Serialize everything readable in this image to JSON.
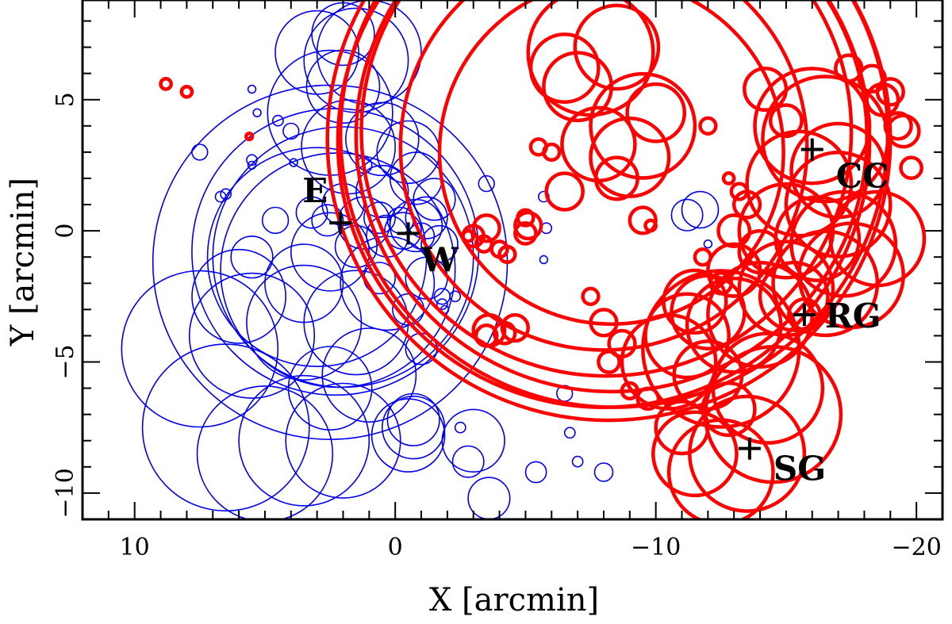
{
  "chart_data": {
    "type": "scatter",
    "xlabel": "X [arcmin]",
    "ylabel": "Y [arcmin]",
    "xlim": [
      12,
      -21
    ],
    "ylim": [
      -11,
      8.8
    ],
    "x_inverted": true,
    "xticks": [
      10,
      0,
      -10,
      -20
    ],
    "xtick_labels": [
      "10",
      "0",
      "−10",
      "−20"
    ],
    "yticks": [
      5,
      0,
      -5,
      -10
    ],
    "ytick_labels": [
      "5",
      "0",
      "−5",
      "−10"
    ],
    "grid": false,
    "legend": "none",
    "colors": {
      "east": "#0000ee",
      "west": "#ff0000",
      "marker": "#000000"
    },
    "markers": [
      {
        "label": "E",
        "x": 2.1,
        "y": 0.3
      },
      {
        "label": "W",
        "x": -0.5,
        "y": -0.1
      },
      {
        "label": "CC",
        "x": -16.0,
        "y": 3.1
      },
      {
        "label": "RG",
        "x": -15.7,
        "y": -3.2
      },
      {
        "label": "SG",
        "x": -13.6,
        "y": -8.3
      }
    ],
    "series": [
      {
        "color": "#0000ee",
        "stroke": 1.6,
        "circles": [
          [
            2.5,
            -1.2,
            6.8
          ],
          [
            2.3,
            -0.8,
            5.5
          ],
          [
            2.0,
            -1.0,
            5.0
          ],
          [
            2.2,
            -1.5,
            4.5
          ],
          [
            3.0,
            -1.0,
            4.2
          ],
          [
            7.5,
            -4.5,
            3.0
          ],
          [
            6.5,
            -7.5,
            3.2
          ],
          [
            5.0,
            -8.5,
            2.6
          ],
          [
            3.5,
            -8.0,
            2.5
          ],
          [
            2.0,
            -8.0,
            2.2
          ],
          [
            5.5,
            -4.0,
            2.4
          ],
          [
            3.5,
            -3.5,
            2.2
          ],
          [
            1.5,
            -3.5,
            2.0
          ],
          [
            1.0,
            -5.5,
            1.8
          ],
          [
            2.5,
            -6.0,
            1.6
          ],
          [
            6.0,
            -2.5,
            1.8
          ],
          [
            0.3,
            -2.0,
            1.8
          ],
          [
            -0.7,
            -7.5,
            1.2
          ],
          [
            -0.5,
            -7.8,
            1.4
          ],
          [
            -0.7,
            -7.2,
            1.0
          ],
          [
            2.5,
            -0.8,
            1.5
          ],
          [
            3.5,
            -2.0,
            1.5
          ],
          [
            5.5,
            -1.0,
            0.8
          ],
          [
            1.5,
            6.5,
            2.0
          ],
          [
            1.0,
            6.8,
            2.0
          ],
          [
            3.0,
            6.8,
            1.6
          ],
          [
            2.0,
            5.5,
            1.4
          ],
          [
            2.0,
            7.5,
            1.2
          ],
          [
            0.5,
            3.5,
            1.4
          ],
          [
            1.8,
            3.2,
            1.8
          ],
          [
            2.5,
            4.5,
            2.4
          ],
          [
            -0.5,
            3.0,
            1.2
          ],
          [
            -0.8,
            2.0,
            1.0
          ],
          [
            0.5,
            1.5,
            1.0
          ],
          [
            -1.5,
            1.2,
            0.8
          ],
          [
            -1.2,
            0.5,
            0.8
          ],
          [
            -0.8,
            0.2,
            1.0
          ],
          [
            -0.3,
            0.0,
            0.7
          ],
          [
            0.3,
            -0.2,
            0.8
          ],
          [
            1.2,
            0.3,
            1.0
          ],
          [
            1.5,
            -0.6,
            0.8
          ],
          [
            0.6,
            0.5,
            0.6
          ],
          [
            -0.2,
            0.4,
            0.5
          ],
          [
            -1.0,
            -0.2,
            0.5
          ],
          [
            -1.7,
            -0.5,
            0.7
          ],
          [
            2.0,
            1.0,
            0.8
          ],
          [
            2.6,
            0.4,
            0.6
          ],
          [
            3.2,
            0.7,
            0.6
          ],
          [
            4.6,
            0.4,
            0.5
          ],
          [
            -1.2,
            -1.8,
            0.8
          ],
          [
            0.6,
            -1.8,
            0.6
          ],
          [
            -0.5,
            -3.0,
            0.6
          ],
          [
            -1.0,
            -4.5,
            0.6
          ],
          [
            -1.8,
            -2.5,
            0.3
          ],
          [
            -1.8,
            -2.8,
            0.2
          ],
          [
            -2.5,
            -7.5,
            0.2
          ],
          [
            -3.0,
            -8.0,
            1.2
          ],
          [
            -2.8,
            -8.8,
            0.6
          ],
          [
            -3.6,
            -10.2,
            0.8
          ],
          [
            -3.5,
            1.8,
            0.3
          ],
          [
            -5.7,
            1.3,
            0.2
          ],
          [
            -5.8,
            0.1,
            0.2
          ],
          [
            -5.7,
            -1.1,
            0.15
          ],
          [
            -6.5,
            -6.2,
            0.3
          ],
          [
            -6.7,
            -7.7,
            0.2
          ],
          [
            -7.0,
            -8.8,
            0.2
          ],
          [
            -5.4,
            -9.2,
            0.4
          ],
          [
            -8.0,
            -9.2,
            0.35
          ],
          [
            -11.7,
            0.8,
            0.7
          ],
          [
            -11.2,
            0.6,
            0.6
          ],
          [
            -12.0,
            -0.5,
            0.15
          ],
          [
            7.5,
            3.0,
            0.3
          ],
          [
            6.5,
            1.4,
            0.2
          ],
          [
            6.7,
            1.3,
            0.2
          ],
          [
            5.5,
            2.7,
            0.2
          ],
          [
            5.5,
            2.5,
            0.15
          ],
          [
            5.5,
            5.4,
            0.15
          ],
          [
            5.3,
            4.5,
            0.15
          ],
          [
            4.5,
            4.2,
            0.2
          ],
          [
            4.0,
            3.8,
            0.3
          ],
          [
            3.9,
            2.6,
            0.15
          ],
          [
            -2.3,
            -2.5,
            0.2
          ],
          [
            -1.9,
            -3.0,
            0.15
          ],
          [
            1.2,
            2.5,
            0.3
          ]
        ]
      },
      {
        "color": "#ff0000",
        "stroke": 4.5,
        "circles": [
          [
            -8.2,
            3.5,
            10.8
          ],
          [
            -8.4,
            3.7,
            10.5
          ],
          [
            -8.0,
            3.4,
            10.2
          ],
          [
            -8.3,
            3.6,
            9.8
          ],
          [
            -8.1,
            3.8,
            9.4
          ],
          [
            -8.0,
            3.2,
            7.8
          ],
          [
            -8.3,
            3.0,
            6.6
          ],
          [
            -6.5,
            6.2,
            1.3
          ],
          [
            -7.5,
            6.8,
            2.4
          ],
          [
            -8.5,
            7.0,
            1.6
          ],
          [
            -9.5,
            4.0,
            2.0
          ],
          [
            -9.0,
            2.8,
            1.5
          ],
          [
            -8.5,
            2.0,
            0.8
          ],
          [
            -7.8,
            3.3,
            1.4
          ],
          [
            -7.0,
            5.5,
            1.3
          ],
          [
            -6.5,
            1.5,
            0.7
          ],
          [
            -5.5,
            3.2,
            0.3
          ],
          [
            -6.0,
            3.0,
            0.3
          ],
          [
            -10.0,
            4.5,
            1.1
          ],
          [
            -12.0,
            4.0,
            0.3
          ],
          [
            -9.5,
            0.4,
            0.5
          ],
          [
            -9.8,
            0.2,
            0.2
          ],
          [
            -5.0,
            0.5,
            0.3
          ],
          [
            -5.1,
            0.2,
            0.5
          ],
          [
            -5.0,
            -0.1,
            0.4
          ],
          [
            -3.5,
            -4.0,
            0.4
          ],
          [
            -3.6,
            -3.8,
            0.6
          ],
          [
            -4.2,
            -3.9,
            0.4
          ],
          [
            -4.6,
            -3.7,
            0.5
          ],
          [
            -7.5,
            -2.5,
            0.3
          ],
          [
            -8.0,
            -3.5,
            0.5
          ],
          [
            -8.7,
            -4.3,
            0.5
          ],
          [
            -8.2,
            -5.0,
            0.4
          ],
          [
            -9.0,
            -6.1,
            0.3
          ],
          [
            -9.7,
            -6.4,
            0.4
          ],
          [
            -3.5,
            0.1,
            0.5
          ],
          [
            -3.0,
            -0.2,
            0.4
          ],
          [
            -2.8,
            -0.2,
            0.2
          ],
          [
            -3.4,
            -0.5,
            0.3
          ],
          [
            -4.0,
            -0.7,
            0.3
          ],
          [
            -4.3,
            -0.9,
            0.3
          ],
          [
            -14.2,
            5.4,
            0.8
          ],
          [
            -15.0,
            4.2,
            0.6
          ],
          [
            -16.0,
            4.0,
            2.2
          ],
          [
            -16.5,
            3.5,
            2.4
          ],
          [
            -17.0,
            2.3,
            1.8
          ],
          [
            -17.0,
            1.0,
            2.0
          ],
          [
            -15.5,
            1.8,
            2.0
          ],
          [
            -15.0,
            0.0,
            1.8
          ],
          [
            -16.2,
            -0.3,
            1.6
          ],
          [
            -17.2,
            -0.5,
            2.0
          ],
          [
            -18.5,
            -0.3,
            1.8
          ],
          [
            -16.5,
            -2.0,
            2.0
          ],
          [
            -15.0,
            -2.2,
            1.8
          ],
          [
            -14.0,
            -3.2,
            2.0
          ],
          [
            -13.0,
            -3.6,
            1.8
          ],
          [
            -12.0,
            -3.1,
            1.4
          ],
          [
            -11.5,
            -2.7,
            1.2
          ],
          [
            -11.2,
            -4.0,
            1.6
          ],
          [
            -10.5,
            -5.0,
            1.8
          ],
          [
            -12.5,
            -4.5,
            3.0
          ],
          [
            -14.3,
            -6.0,
            2.1
          ],
          [
            -15.7,
            -3.2,
            0.6
          ],
          [
            -14.5,
            -7.0,
            2.6
          ],
          [
            -13.5,
            -8.5,
            2.2
          ],
          [
            -12.5,
            -9.2,
            2.0
          ],
          [
            -11.5,
            -8.5,
            1.6
          ],
          [
            -11.0,
            -7.5,
            1.0
          ],
          [
            -12.0,
            -5.5,
            1.3
          ],
          [
            -12.8,
            -6.8,
            1.0
          ],
          [
            -13.0,
            -1.5,
            1.0
          ],
          [
            -14.0,
            -0.8,
            0.8
          ],
          [
            -13.5,
            1.0,
            0.5
          ],
          [
            -13.2,
            1.5,
            0.3
          ],
          [
            -12.8,
            2.0,
            0.2
          ],
          [
            -13.0,
            0.0,
            0.6
          ],
          [
            -12.5,
            -2.0,
            0.4
          ],
          [
            -11.8,
            -1.0,
            0.3
          ],
          [
            -17.4,
            6.2,
            0.5
          ],
          [
            -18.3,
            5.8,
            0.5
          ],
          [
            -18.7,
            5.0,
            0.6
          ],
          [
            -19.0,
            5.3,
            0.5
          ],
          [
            -19.3,
            4.0,
            0.5
          ],
          [
            -19.5,
            3.8,
            0.6
          ],
          [
            -19.8,
            2.4,
            0.4
          ],
          [
            -17.5,
            -1.7,
            2.0
          ],
          [
            -15.3,
            -2.5,
            1.3
          ],
          [
            8.8,
            5.6,
            0.2
          ],
          [
            8.0,
            5.3,
            0.2
          ],
          [
            5.6,
            3.6,
            0.12
          ]
        ]
      }
    ]
  }
}
